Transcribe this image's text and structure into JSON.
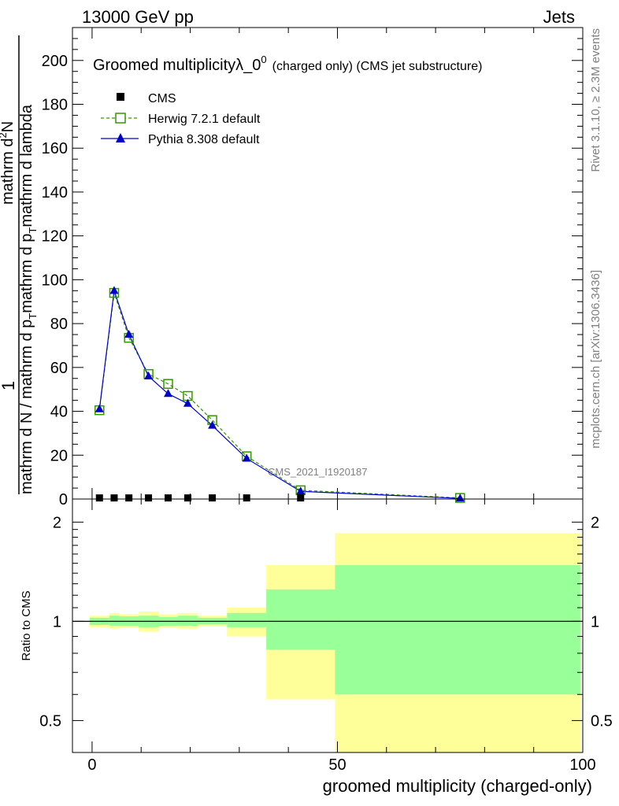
{
  "header": {
    "left": "13000 GeV pp",
    "right": "Jets"
  },
  "side_labels": {
    "top": "Rivet 3.1.10, ≥ 2.3M events",
    "bottom": "mcplots.cern.ch [arXiv:1306.3436]"
  },
  "watermark": "CMS_2021_I1920187",
  "chart_data": [
    {
      "type": "line",
      "title": "Groomed multiplicityλ_0",
      "title_sup": "0",
      "subtitle": "(charged only) (CMS jet substructure)",
      "ylabel": {
        "numerator_top": "mathrm d",
        "numerator_sup": "2",
        "numerator_rest": "N",
        "one": "1",
        "main": "mathrm d N / mathrm d p",
        "main_sub": "T",
        "main_rest": "mathrm d p",
        "main_sub2": "T",
        "main_rest2": "mathrm d lambda"
      },
      "xlim": [
        -4,
        100
      ],
      "ylim": [
        0,
        215
      ],
      "yticks": [
        0,
        20,
        40,
        60,
        80,
        100,
        120,
        140,
        160,
        180,
        200
      ],
      "legend": [
        "CMS",
        "Herwig 7.2.1 default",
        "Pythia 8.308 default"
      ],
      "colors": {
        "cms": "#000000",
        "herwig": "#339900",
        "pythia": "#0000cc"
      },
      "series": [
        {
          "name": "CMS",
          "x": [
            1.5,
            4.5,
            7.5,
            11.5,
            15.5,
            19.5,
            24.5,
            31.5,
            42.5
          ],
          "y": [
            0.5,
            0.5,
            0.5,
            0.5,
            0.5,
            0.5,
            0.5,
            0.5,
            0.5
          ]
        },
        {
          "name": "Herwig 7.2.1 default",
          "x": [
            1.5,
            4.5,
            7.5,
            11.5,
            15.5,
            19.5,
            24.5,
            31.5,
            42.5,
            75
          ],
          "y": [
            40.5,
            94,
            73.5,
            57,
            52.5,
            47,
            36,
            19.5,
            4,
            0.5
          ]
        },
        {
          "name": "Pythia 8.308 default",
          "x": [
            1.5,
            4.5,
            7.5,
            11.5,
            15.5,
            19.5,
            24.5,
            31.5,
            42.5,
            75
          ],
          "y": [
            41,
            95,
            75,
            56,
            48,
            43.5,
            33.5,
            18.5,
            3.5,
            0.3
          ]
        }
      ]
    },
    {
      "type": "area",
      "ylabel": "Ratio to CMS",
      "xlabel": "groomed multiplicity (charged-only)",
      "xlim": [
        -4,
        100
      ],
      "ylim": [
        0.4,
        2.35
      ],
      "yticks": [
        0.5,
        1,
        2
      ],
      "xticks": [
        0,
        50,
        100
      ],
      "colors": {
        "inner": "#99ff99",
        "outer": "#ffff99",
        "ref": "#000000"
      },
      "bands": [
        {
          "x0": -0.5,
          "x1": 3.5,
          "outer": [
            0.96,
            1.04
          ],
          "inner": [
            0.975,
            1.025
          ]
        },
        {
          "x0": 3.5,
          "x1": 5.5,
          "outer": [
            0.95,
            1.06
          ],
          "inner": [
            0.97,
            1.04
          ]
        },
        {
          "x0": 5.5,
          "x1": 9.5,
          "outer": [
            0.955,
            1.05
          ],
          "inner": [
            0.97,
            1.035
          ]
        },
        {
          "x0": 9.5,
          "x1": 13.5,
          "outer": [
            0.93,
            1.07
          ],
          "inner": [
            0.96,
            1.04
          ]
        },
        {
          "x0": 13.5,
          "x1": 17.5,
          "outer": [
            0.955,
            1.05
          ],
          "inner": [
            0.97,
            1.03
          ]
        },
        {
          "x0": 17.5,
          "x1": 21.5,
          "outer": [
            0.95,
            1.06
          ],
          "inner": [
            0.97,
            1.04
          ]
        },
        {
          "x0": 21.5,
          "x1": 27.5,
          "outer": [
            0.965,
            1.04
          ],
          "inner": [
            0.98,
            1.025
          ]
        },
        {
          "x0": 27.5,
          "x1": 35.5,
          "outer": [
            0.9,
            1.1
          ],
          "inner": [
            0.96,
            1.06
          ]
        },
        {
          "x0": 35.5,
          "x1": 49.5,
          "outer": [
            0.58,
            1.48
          ],
          "inner": [
            0.82,
            1.25
          ]
        },
        {
          "x0": 49.5,
          "x1": 99.5,
          "outer": [
            0.4,
            1.85
          ],
          "inner": [
            0.6,
            1.48
          ]
        }
      ]
    }
  ]
}
